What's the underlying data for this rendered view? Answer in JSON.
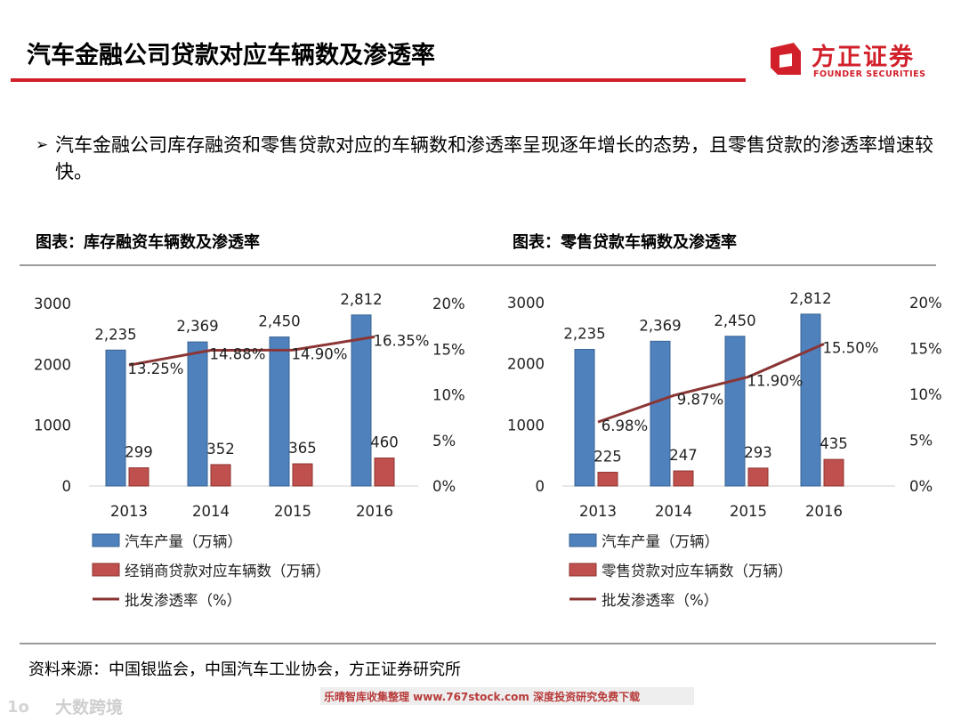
{
  "page": {
    "title": "汽车金融公司贷款对应车辆数及渗透率",
    "logo_cn": "方正证券",
    "logo_en": "FOUNDER SECURITIES",
    "bullet_mark": "➢",
    "bullet_text": "汽车金融公司库存融资和零售贷款对应的车辆数和渗透率呈现逐年增长的态势，且零售贷款的渗透率增速较快。",
    "left_chart_title": "图表：库存融资车辆数及渗透率",
    "right_chart_title": "图表：零售贷款车辆数及渗透率",
    "source": "资料来源：中国银监会，中国汽车工业协会，方正证券研究所",
    "footer_text": "乐晴智库收集整理 www.767stock.com 深度投资研究免费下载",
    "watermark_text": "大数跨境",
    "watermark_logo": "1o"
  },
  "colors": {
    "brand_red": "#d2202b",
    "bar_blue": "#4f81bd",
    "bar_red": "#c0504d",
    "line": "#8b3535"
  },
  "chart_data": [
    {
      "type": "bar+line",
      "title": "图表：库存融资车辆数及渗透率",
      "categories": [
        "2013",
        "2014",
        "2015",
        "2016"
      ],
      "series": [
        {
          "name": "汽车产量（万辆）",
          "type": "bar",
          "axis": "left",
          "values": [
            2235,
            2369,
            2450,
            2812
          ],
          "labels": [
            "2,235",
            "2,369",
            "2,450",
            "2,812"
          ]
        },
        {
          "name": "经销商贷款对应车辆数（万辆）",
          "type": "bar",
          "axis": "left",
          "values": [
            299,
            352,
            365,
            460
          ],
          "labels": [
            "299",
            "352",
            "365",
            "460"
          ]
        },
        {
          "name": "批发渗透率（%）",
          "type": "line",
          "axis": "right",
          "values": [
            13.25,
            14.88,
            14.9,
            16.35
          ],
          "labels": [
            "13.25%",
            "14.88%",
            "14.90%",
            "16.35%"
          ]
        }
      ],
      "yleft": {
        "min": 0,
        "max": 3000,
        "ticks": [
          "0",
          "1000",
          "2000",
          "3000"
        ]
      },
      "yright": {
        "min": 0,
        "max": 20,
        "ticks": [
          "0%",
          "5%",
          "10%",
          "15%",
          "20%"
        ]
      }
    },
    {
      "type": "bar+line",
      "title": "图表：零售贷款车辆数及渗透率",
      "categories": [
        "2013",
        "2014",
        "2015",
        "2016"
      ],
      "series": [
        {
          "name": "汽车产量（万辆）",
          "type": "bar",
          "axis": "left",
          "values": [
            2235,
            2369,
            2450,
            2812
          ],
          "labels": [
            "2,235",
            "2,369",
            "2,450",
            "2,812"
          ]
        },
        {
          "name": "零售贷款对应车辆数（万辆）",
          "type": "bar",
          "axis": "left",
          "values": [
            225,
            247,
            293,
            435
          ],
          "labels": [
            "225",
            "247",
            "293",
            "435"
          ]
        },
        {
          "name": "批发渗透率（%）",
          "type": "line",
          "axis": "right",
          "values": [
            6.98,
            9.87,
            11.9,
            15.5
          ],
          "labels": [
            "6.98%",
            "9.87%",
            "11.90%",
            "15.50%"
          ]
        }
      ],
      "yleft": {
        "min": 0,
        "max": 3000,
        "ticks": [
          "0",
          "1000",
          "2000",
          "3000"
        ]
      },
      "yright": {
        "min": 0,
        "max": 20,
        "ticks": [
          "0%",
          "5%",
          "10%",
          "15%",
          "20%"
        ]
      }
    }
  ]
}
